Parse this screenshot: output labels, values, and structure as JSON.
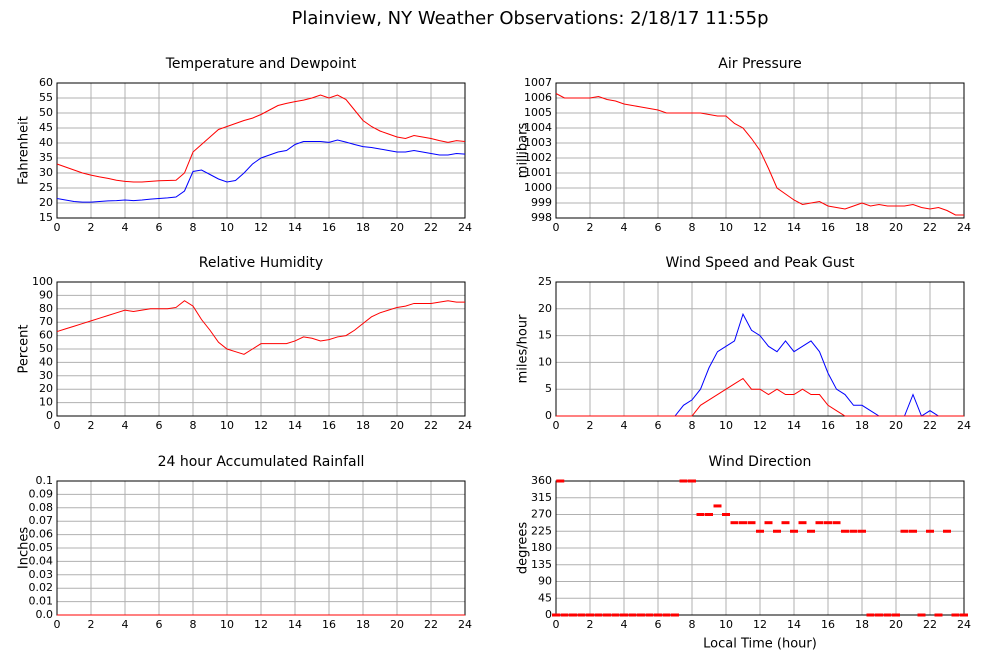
{
  "title": "Plainview, NY Weather Observations: 2/18/17 11:55p",
  "chart_data": [
    {
      "type": "line",
      "title": "Temperature and Dewpoint",
      "ylabel": "Fahrenheit",
      "x": [
        0,
        0.5,
        1,
        1.5,
        2,
        2.5,
        3,
        3.5,
        4,
        4.5,
        5,
        5.5,
        6,
        6.5,
        7,
        7.5,
        8,
        8.5,
        9,
        9.5,
        10,
        10.5,
        11,
        11.5,
        12,
        12.5,
        13,
        13.5,
        14,
        14.5,
        15,
        15.5,
        16,
        16.5,
        17,
        17.5,
        18,
        18.5,
        19,
        19.5,
        20,
        20.5,
        21,
        21.5,
        22,
        22.5,
        23,
        23.5,
        24
      ],
      "series": [
        {
          "color": "#ff0000",
          "values": [
            33,
            32,
            31,
            30,
            29.3,
            28.7,
            28.2,
            27.6,
            27.2,
            27,
            27,
            27.2,
            27.4,
            27.5,
            27.6,
            30,
            37,
            39.5,
            42,
            44.5,
            45.5,
            46.5,
            47.5,
            48.3,
            49.5,
            51,
            52.5,
            53.2,
            53.8,
            54.3,
            55,
            56,
            55,
            56,
            54.5,
            51,
            47.5,
            45.5,
            44,
            43,
            42,
            41.5,
            42.5,
            42,
            41.5,
            40.8,
            40.2,
            40.8,
            40.5
          ]
        },
        {
          "color": "#0000ff",
          "values": [
            21.5,
            21,
            20.5,
            20.3,
            20.3,
            20.5,
            20.7,
            20.8,
            21,
            20.8,
            21,
            21.3,
            21.5,
            21.7,
            22,
            24,
            30.5,
            31,
            29.5,
            28,
            27,
            27.5,
            30,
            33,
            35,
            36,
            37,
            37.5,
            39.5,
            40.5,
            40.5,
            40.5,
            40.2,
            41,
            40.3,
            39.5,
            38.8,
            38.5,
            38,
            37.5,
            37,
            37,
            37.5,
            37,
            36.5,
            36,
            36,
            36.5,
            36.3
          ]
        }
      ],
      "xlim": [
        0,
        24
      ],
      "xticks": [
        0,
        2,
        4,
        6,
        8,
        10,
        12,
        14,
        16,
        18,
        20,
        22,
        24
      ],
      "ylim": [
        15,
        60
      ],
      "yticks": [
        15,
        20,
        25,
        30,
        35,
        40,
        45,
        50,
        55,
        60
      ],
      "grid": true
    },
    {
      "type": "line",
      "title": "Air Pressure",
      "ylabel": "millibars",
      "x": [
        0,
        0.5,
        1,
        1.5,
        2,
        2.5,
        3,
        3.5,
        4,
        4.5,
        5,
        5.5,
        6,
        6.5,
        7,
        7.5,
        8,
        8.5,
        9,
        9.5,
        10,
        10.5,
        11,
        11.5,
        12,
        12.5,
        13,
        13.5,
        14,
        14.5,
        15,
        15.5,
        16,
        16.5,
        17,
        17.5,
        18,
        18.5,
        19,
        19.5,
        20,
        20.5,
        21,
        21.5,
        22,
        22.5,
        23,
        23.5,
        24
      ],
      "series": [
        {
          "color": "#ff0000",
          "values": [
            1006.3,
            1006,
            1006,
            1006,
            1006,
            1006.1,
            1005.9,
            1005.8,
            1005.6,
            1005.5,
            1005.4,
            1005.3,
            1005.2,
            1005,
            1005,
            1005,
            1005,
            1005,
            1004.9,
            1004.8,
            1004.8,
            1004.3,
            1004,
            1003.3,
            1002.5,
            1001.3,
            1000,
            999.6,
            999.2,
            998.9,
            999,
            999.1,
            998.8,
            998.7,
            998.6,
            998.8,
            999,
            998.8,
            998.9,
            998.8,
            998.8,
            998.8,
            998.9,
            998.7,
            998.6,
            998.7,
            998.5,
            998.2,
            998.2
          ]
        }
      ],
      "xlim": [
        0,
        24
      ],
      "xticks": [
        0,
        2,
        4,
        6,
        8,
        10,
        12,
        14,
        16,
        18,
        20,
        22,
        24
      ],
      "ylim": [
        998,
        1007
      ],
      "yticks": [
        998,
        999,
        1000,
        1001,
        1002,
        1003,
        1004,
        1005,
        1006,
        1007
      ],
      "grid": true
    },
    {
      "type": "line",
      "title": "Relative Humidity",
      "ylabel": "Percent",
      "x": [
        0,
        0.5,
        1,
        1.5,
        2,
        2.5,
        3,
        3.5,
        4,
        4.5,
        5,
        5.5,
        6,
        6.5,
        7,
        7.5,
        8,
        8.5,
        9,
        9.5,
        10,
        10.5,
        11,
        11.5,
        12,
        12.5,
        13,
        13.5,
        14,
        14.5,
        15,
        15.5,
        16,
        16.5,
        17,
        17.5,
        18,
        18.5,
        19,
        19.5,
        20,
        20.5,
        21,
        21.5,
        22,
        22.5,
        23,
        23.5,
        24
      ],
      "series": [
        {
          "color": "#ff0000",
          "values": [
            63,
            65,
            67,
            69,
            71,
            73,
            75,
            77,
            79,
            78,
            79,
            80,
            80,
            80,
            81,
            86,
            82,
            72,
            64,
            55,
            50,
            48,
            46,
            50,
            54,
            54,
            54,
            54,
            56,
            59,
            58,
            56,
            57,
            59,
            60,
            64,
            69,
            74,
            77,
            79,
            81,
            82,
            84,
            84,
            84,
            85,
            86,
            85,
            85
          ]
        }
      ],
      "xlim": [
        0,
        24
      ],
      "xticks": [
        0,
        2,
        4,
        6,
        8,
        10,
        12,
        14,
        16,
        18,
        20,
        22,
        24
      ],
      "ylim": [
        0,
        100
      ],
      "yticks": [
        0,
        10,
        20,
        30,
        40,
        50,
        60,
        70,
        80,
        90,
        100
      ],
      "grid": true
    },
    {
      "type": "line",
      "title": "Wind Speed and Peak Gust",
      "ylabel": "miles/hour",
      "x": [
        0,
        0.5,
        1,
        1.5,
        2,
        2.5,
        3,
        3.5,
        4,
        4.5,
        5,
        5.5,
        6,
        6.5,
        7,
        7.5,
        8,
        8.5,
        9,
        9.5,
        10,
        10.5,
        11,
        11.5,
        12,
        12.5,
        13,
        13.5,
        14,
        14.5,
        15,
        15.5,
        16,
        16.5,
        17,
        17.5,
        18,
        18.5,
        19,
        19.5,
        20,
        20.5,
        21,
        21.5,
        22,
        22.5,
        23,
        23.5,
        24
      ],
      "series": [
        {
          "color": "#0000ff",
          "values": [
            0,
            0,
            0,
            0,
            0,
            0,
            0,
            0,
            0,
            0,
            0,
            0,
            0,
            0,
            0,
            2,
            3,
            5,
            9,
            12,
            13,
            14,
            19,
            16,
            15,
            13,
            12,
            14,
            12,
            13,
            14,
            12,
            8,
            5,
            4,
            2,
            2,
            1,
            0,
            0,
            0,
            0,
            4,
            0,
            1,
            0,
            0,
            0,
            0
          ]
        },
        {
          "color": "#ff0000",
          "values": [
            0,
            0,
            0,
            0,
            0,
            0,
            0,
            0,
            0,
            0,
            0,
            0,
            0,
            0,
            0,
            0,
            0,
            2,
            3,
            4,
            5,
            6,
            7,
            5,
            5,
            4,
            5,
            4,
            4,
            5,
            4,
            4,
            2,
            1,
            0,
            0,
            0,
            0,
            0,
            0,
            0,
            0,
            0,
            0,
            0,
            0,
            0,
            0,
            0
          ]
        }
      ],
      "xlim": [
        0,
        24
      ],
      "xticks": [
        0,
        2,
        4,
        6,
        8,
        10,
        12,
        14,
        16,
        18,
        20,
        22,
        24
      ],
      "ylim": [
        0,
        25
      ],
      "yticks": [
        0,
        5,
        10,
        15,
        20,
        25
      ],
      "grid": true
    },
    {
      "type": "line",
      "title": "24 hour Accumulated Rainfall",
      "ylabel": "Inches",
      "x": [
        0,
        24
      ],
      "series": [
        {
          "color": "#ff0000",
          "values": [
            0,
            0
          ]
        }
      ],
      "xlim": [
        0,
        24
      ],
      "xticks": [
        0,
        2,
        4,
        6,
        8,
        10,
        12,
        14,
        16,
        18,
        20,
        22,
        24
      ],
      "ylim": [
        0,
        0.1
      ],
      "yticks": [
        {
          "value": 0,
          "label": "0.0"
        },
        0.01,
        0.02,
        0.03,
        0.04,
        0.05,
        0.06,
        0.07,
        0.08,
        0.09,
        0.1
      ],
      "grid": true
    },
    {
      "type": "scatter",
      "title": "Wind Direction",
      "ylabel": "degrees",
      "xlabel": "Local Time (hour)",
      "x": [
        0,
        0.25,
        0.5,
        1,
        1.5,
        2,
        2.5,
        3,
        3.5,
        4,
        4.5,
        5,
        5.5,
        6,
        6.5,
        7,
        7.5,
        8,
        8.5,
        9,
        9.5,
        10,
        10.5,
        11,
        11.5,
        12,
        12.5,
        13,
        13.5,
        14,
        14.5,
        15,
        15.5,
        16,
        16.5,
        17,
        17.5,
        18,
        18.5,
        19,
        19.5,
        20,
        20.5,
        21,
        21.5,
        22,
        22.5,
        23,
        23.5,
        24
      ],
      "series": [
        {
          "color": "#ff0000",
          "values": [
            0,
            360,
            0,
            0,
            0,
            0,
            0,
            0,
            0,
            0,
            0,
            0,
            0,
            0,
            0,
            0,
            360,
            360,
            270,
            270,
            293,
            270,
            248,
            248,
            248,
            225,
            248,
            225,
            248,
            225,
            248,
            225,
            248,
            248,
            248,
            225,
            225,
            225,
            0,
            0,
            0,
            0,
            225,
            225,
            0,
            225,
            0,
            225,
            0,
            0
          ]
        }
      ],
      "xlim": [
        0,
        24
      ],
      "xticks": [
        0,
        2,
        4,
        6,
        8,
        10,
        12,
        14,
        16,
        18,
        20,
        22,
        24
      ],
      "ylim": [
        0,
        360
      ],
      "yticks": [
        0,
        45,
        90,
        135,
        180,
        225,
        270,
        315,
        360
      ],
      "grid": true
    }
  ]
}
